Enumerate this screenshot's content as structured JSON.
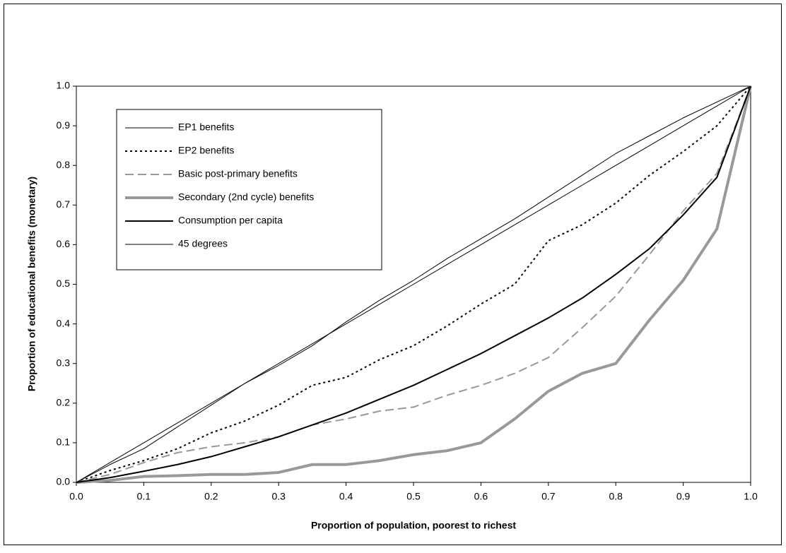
{
  "chart_data": {
    "type": "line",
    "xlabel": "Proportion of population, poorest to richest",
    "ylabel": "Proportion of educational benefits (monetary)",
    "x": [
      0,
      0.05,
      0.1,
      0.15,
      0.2,
      0.25,
      0.3,
      0.35,
      0.4,
      0.45,
      0.5,
      0.55,
      0.6,
      0.65,
      0.7,
      0.75,
      0.8,
      0.85,
      0.9,
      0.95,
      1
    ],
    "xlim": [
      0,
      1
    ],
    "xticks": [
      {
        "value": 0,
        "label": "0.0"
      },
      {
        "value": 0.1,
        "label": "0.1"
      },
      {
        "value": 0.2,
        "label": "0.2"
      },
      {
        "value": 0.3,
        "label": "0.3"
      },
      {
        "value": 0.4,
        "label": "0.4"
      },
      {
        "value": 0.5,
        "label": "0.5"
      },
      {
        "value": 0.6,
        "label": "0.6"
      },
      {
        "value": 0.7,
        "label": "0.7"
      },
      {
        "value": 0.8,
        "label": "0.8"
      },
      {
        "value": 0.9,
        "label": "0.9"
      },
      {
        "value": 1,
        "label": "1.0"
      }
    ],
    "ylim": [
      0,
      1
    ],
    "yticks": [
      {
        "value": 0,
        "label": "0.0"
      },
      {
        "value": 0.1,
        "label": "0.1"
      },
      {
        "value": 0.2,
        "label": "0.2"
      },
      {
        "value": 0.3,
        "label": "0.3"
      },
      {
        "value": 0.4,
        "label": "0.4"
      },
      {
        "value": 0.5,
        "label": "0.5"
      },
      {
        "value": 0.6,
        "label": "0.6"
      },
      {
        "value": 0.7,
        "label": "0.7"
      },
      {
        "value": 0.8,
        "label": "0.8"
      },
      {
        "value": 0.9,
        "label": "0.9"
      },
      {
        "value": 1,
        "label": "1.0"
      }
    ],
    "grid": false,
    "legend": "upper left",
    "series": [
      {
        "name": "EP1 benefits",
        "color": "#000000",
        "style": "solid",
        "width": 1,
        "values": [
          0,
          0.045,
          0.085,
          0.14,
          0.195,
          0.25,
          0.295,
          0.345,
          0.405,
          0.46,
          0.51,
          0.565,
          0.615,
          0.665,
          0.72,
          0.775,
          0.83,
          0.875,
          0.92,
          0.96,
          1
        ]
      },
      {
        "name": "EP2 benefits",
        "color": "#000000",
        "style": "dotted",
        "width": 2,
        "values": [
          0,
          0.03,
          0.055,
          0.085,
          0.125,
          0.155,
          0.195,
          0.245,
          0.265,
          0.31,
          0.345,
          0.395,
          0.45,
          0.5,
          0.61,
          0.65,
          0.705,
          0.775,
          0.835,
          0.9,
          1
        ]
      },
      {
        "name": "Basic post-primary benefits",
        "color": "#999999",
        "style": "dashed",
        "width": 2,
        "values": [
          0,
          0.02,
          0.05,
          0.075,
          0.09,
          0.1,
          0.115,
          0.145,
          0.16,
          0.18,
          0.19,
          0.22,
          0.245,
          0.275,
          0.315,
          0.39,
          0.47,
          0.575,
          0.685,
          0.78,
          1
        ]
      },
      {
        "name": "Secondary (2nd cycle) benefits",
        "color": "#999999",
        "style": "solid",
        "width": 4,
        "values": [
          0,
          0.005,
          0.015,
          0.017,
          0.02,
          0.02,
          0.025,
          0.045,
          0.045,
          0.055,
          0.07,
          0.08,
          0.1,
          0.16,
          0.23,
          0.275,
          0.3,
          0.41,
          0.51,
          0.64,
          1
        ]
      },
      {
        "name": "Consumption per capita",
        "color": "#000000",
        "style": "solid",
        "width": 2,
        "values": [
          0,
          0.012,
          0.028,
          0.045,
          0.065,
          0.09,
          0.115,
          0.145,
          0.175,
          0.21,
          0.245,
          0.285,
          0.325,
          0.37,
          0.415,
          0.465,
          0.525,
          0.59,
          0.675,
          0.77,
          1
        ]
      },
      {
        "name": "45 degrees",
        "color": "#000000",
        "style": "solid",
        "width": 1,
        "values": [
          0,
          0.05,
          0.1,
          0.15,
          0.2,
          0.25,
          0.3,
          0.35,
          0.4,
          0.45,
          0.5,
          0.55,
          0.6,
          0.65,
          0.7,
          0.75,
          0.8,
          0.85,
          0.9,
          0.95,
          1
        ]
      }
    ]
  }
}
